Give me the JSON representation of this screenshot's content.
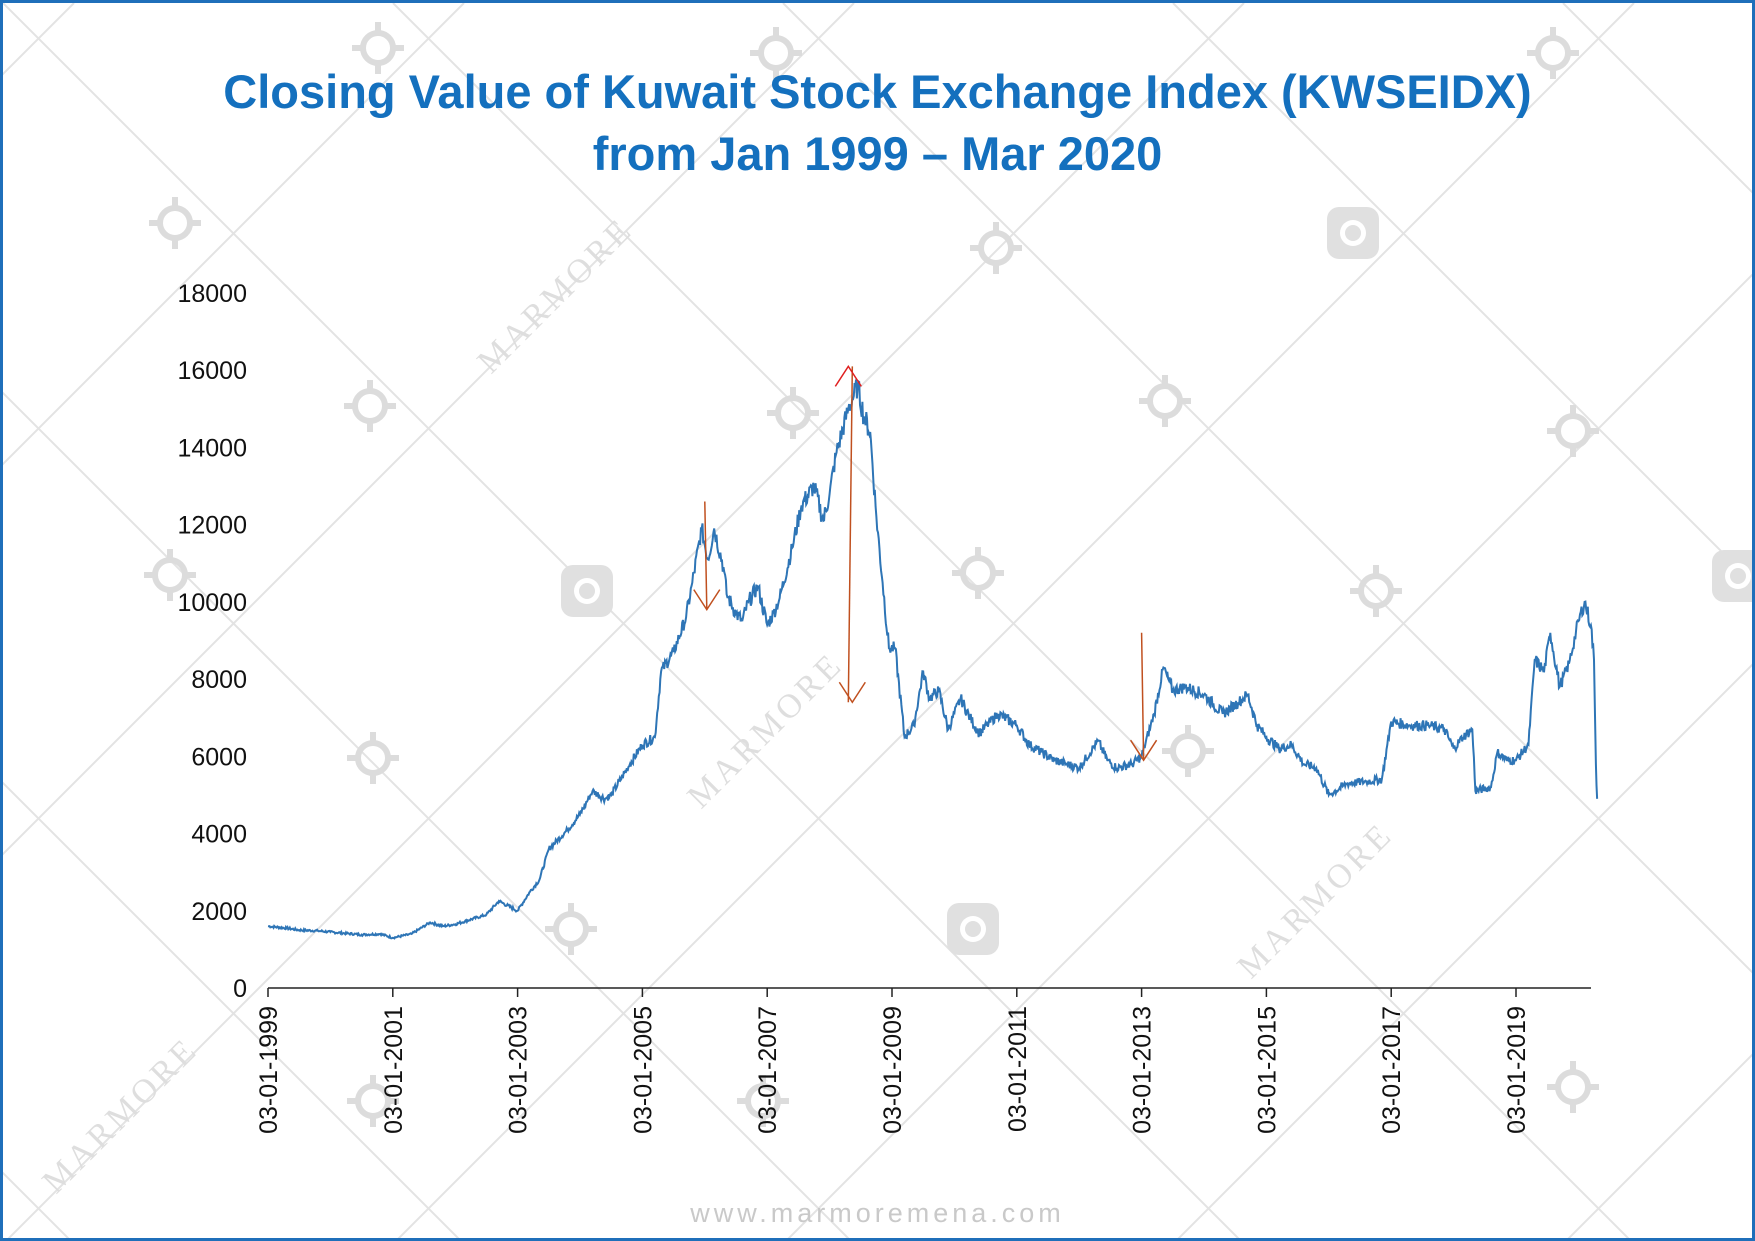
{
  "title_line1": "Closing Value of Kuwait Stock Exchange Index (KWSEIDX)",
  "title_line2": "from Jan 1999 – Mar 2020",
  "footer": "www.marmoremena.com",
  "watermark": "MARMORE",
  "colors": {
    "title": "#1470be",
    "line": "#2e75b6",
    "arrow": "#c0501f",
    "arrow_head_up": "#e02020",
    "border": "#1f6fba"
  },
  "chart_data": {
    "type": "line",
    "title": "Closing Value of Kuwait Stock Exchange Index (KWSEIDX) from Jan 1999 – Mar 2020",
    "xlabel": "",
    "ylabel": "",
    "ylim": [
      0,
      18000
    ],
    "xlim": [
      1999.0,
      2020.2
    ],
    "yticks": [
      "0",
      "2000",
      "4000",
      "6000",
      "8000",
      "10000",
      "12000",
      "14000",
      "16000",
      "18000"
    ],
    "xticks": [
      {
        "x": 1999,
        "label": "03-01-1999"
      },
      {
        "x": 2001,
        "label": "03-01-2001"
      },
      {
        "x": 2003,
        "label": "03-01-2003"
      },
      {
        "x": 2005,
        "label": "03-01-2005"
      },
      {
        "x": 2007,
        "label": "03-01-2007"
      },
      {
        "x": 2009,
        "label": "03-01-2009"
      },
      {
        "x": 2011,
        "label": "03-01-2011"
      },
      {
        "x": 2013,
        "label": "03-01-2013"
      },
      {
        "x": 2015,
        "label": "03-01-2015"
      },
      {
        "x": 2017,
        "label": "03-01-2017"
      },
      {
        "x": 2019,
        "label": "03-01-2019"
      }
    ],
    "grid": false,
    "series": [
      {
        "points": [
          [
            1999.0,
            1600
          ],
          [
            1999.3,
            1550
          ],
          [
            1999.5,
            1500
          ],
          [
            1999.8,
            1480
          ],
          [
            2000.0,
            1450
          ],
          [
            2000.5,
            1380
          ],
          [
            2000.8,
            1400
          ],
          [
            2001.0,
            1300
          ],
          [
            2001.3,
            1400
          ],
          [
            2001.6,
            1700
          ],
          [
            2001.8,
            1600
          ],
          [
            2002.0,
            1650
          ],
          [
            2002.5,
            1900
          ],
          [
            2002.7,
            2250
          ],
          [
            2003.0,
            2000
          ],
          [
            2003.2,
            2500
          ],
          [
            2003.35,
            2800
          ],
          [
            2003.5,
            3600
          ],
          [
            2003.8,
            4100
          ],
          [
            2004.0,
            4500
          ],
          [
            2004.2,
            5100
          ],
          [
            2004.4,
            4900
          ],
          [
            2004.5,
            5000
          ],
          [
            2004.8,
            5800
          ],
          [
            2005.0,
            6300
          ],
          [
            2005.2,
            6500
          ],
          [
            2005.3,
            8200
          ],
          [
            2005.5,
            8700
          ],
          [
            2005.7,
            9600
          ],
          [
            2005.8,
            10500
          ],
          [
            2005.95,
            11900
          ],
          [
            2006.05,
            11100
          ],
          [
            2006.15,
            11900
          ],
          [
            2006.3,
            10900
          ],
          [
            2006.35,
            10200
          ],
          [
            2006.5,
            9700
          ],
          [
            2006.6,
            9500
          ],
          [
            2006.7,
            10000
          ],
          [
            2006.85,
            10400
          ],
          [
            2007.0,
            9400
          ],
          [
            2007.1,
            9700
          ],
          [
            2007.2,
            10100
          ],
          [
            2007.4,
            11400
          ],
          [
            2007.55,
            12500
          ],
          [
            2007.75,
            13000
          ],
          [
            2007.9,
            12100
          ],
          [
            2008.0,
            12800
          ],
          [
            2008.1,
            13800
          ],
          [
            2008.3,
            15000
          ],
          [
            2008.45,
            15600
          ],
          [
            2008.55,
            14800
          ],
          [
            2008.65,
            14400
          ],
          [
            2008.75,
            12200
          ],
          [
            2008.85,
            10500
          ],
          [
            2008.95,
            8800
          ],
          [
            2009.05,
            8800
          ],
          [
            2009.2,
            6500
          ],
          [
            2009.35,
            6800
          ],
          [
            2009.5,
            8200
          ],
          [
            2009.6,
            7500
          ],
          [
            2009.75,
            7700
          ],
          [
            2009.9,
            6700
          ],
          [
            2010.1,
            7500
          ],
          [
            2010.25,
            7000
          ],
          [
            2010.4,
            6600
          ],
          [
            2010.7,
            7100
          ],
          [
            2011.0,
            6800
          ],
          [
            2011.2,
            6300
          ],
          [
            2011.4,
            6100
          ],
          [
            2011.6,
            5900
          ],
          [
            2011.8,
            5800
          ],
          [
            2012.0,
            5700
          ],
          [
            2012.3,
            6400
          ],
          [
            2012.45,
            5900
          ],
          [
            2012.6,
            5700
          ],
          [
            2012.85,
            5800
          ],
          [
            2013.0,
            6000
          ],
          [
            2013.2,
            7100
          ],
          [
            2013.35,
            8300
          ],
          [
            2013.5,
            7700
          ],
          [
            2013.7,
            7800
          ],
          [
            2014.0,
            7600
          ],
          [
            2014.3,
            7100
          ],
          [
            2014.55,
            7400
          ],
          [
            2014.7,
            7600
          ],
          [
            2014.85,
            6800
          ],
          [
            2015.0,
            6500
          ],
          [
            2015.2,
            6200
          ],
          [
            2015.4,
            6300
          ],
          [
            2015.6,
            5800
          ],
          [
            2015.8,
            5700
          ],
          [
            2016.0,
            5000
          ],
          [
            2016.3,
            5300
          ],
          [
            2016.6,
            5350
          ],
          [
            2016.85,
            5400
          ],
          [
            2017.0,
            6900
          ],
          [
            2017.3,
            6800
          ],
          [
            2017.6,
            6800
          ],
          [
            2017.85,
            6700
          ],
          [
            2018.0,
            6200
          ],
          [
            2018.15,
            6500
          ],
          [
            2018.3,
            6700
          ],
          [
            2018.35,
            5100
          ],
          [
            2018.6,
            5200
          ],
          [
            2018.7,
            6100
          ],
          [
            2018.85,
            5900
          ],
          [
            2019.0,
            5900
          ],
          [
            2019.2,
            6300
          ],
          [
            2019.3,
            8500
          ],
          [
            2019.45,
            8200
          ],
          [
            2019.55,
            9200
          ],
          [
            2019.7,
            7800
          ],
          [
            2019.85,
            8400
          ],
          [
            2020.0,
            9500
          ],
          [
            2020.1,
            10000
          ],
          [
            2020.2,
            9400
          ],
          [
            2020.25,
            8500
          ],
          [
            2020.28,
            5800
          ],
          [
            2020.3,
            4900
          ]
        ]
      }
    ],
    "annotations": [
      {
        "type": "arrow",
        "direction": "down",
        "x": 2006.0,
        "from": 12600,
        "to": 9800
      },
      {
        "type": "arrow",
        "direction": "both",
        "x": 2008.3,
        "from": 7400,
        "to": 16100
      },
      {
        "type": "arrow",
        "direction": "down",
        "x": 2013.0,
        "from": 9200,
        "to": 5900
      }
    ]
  }
}
